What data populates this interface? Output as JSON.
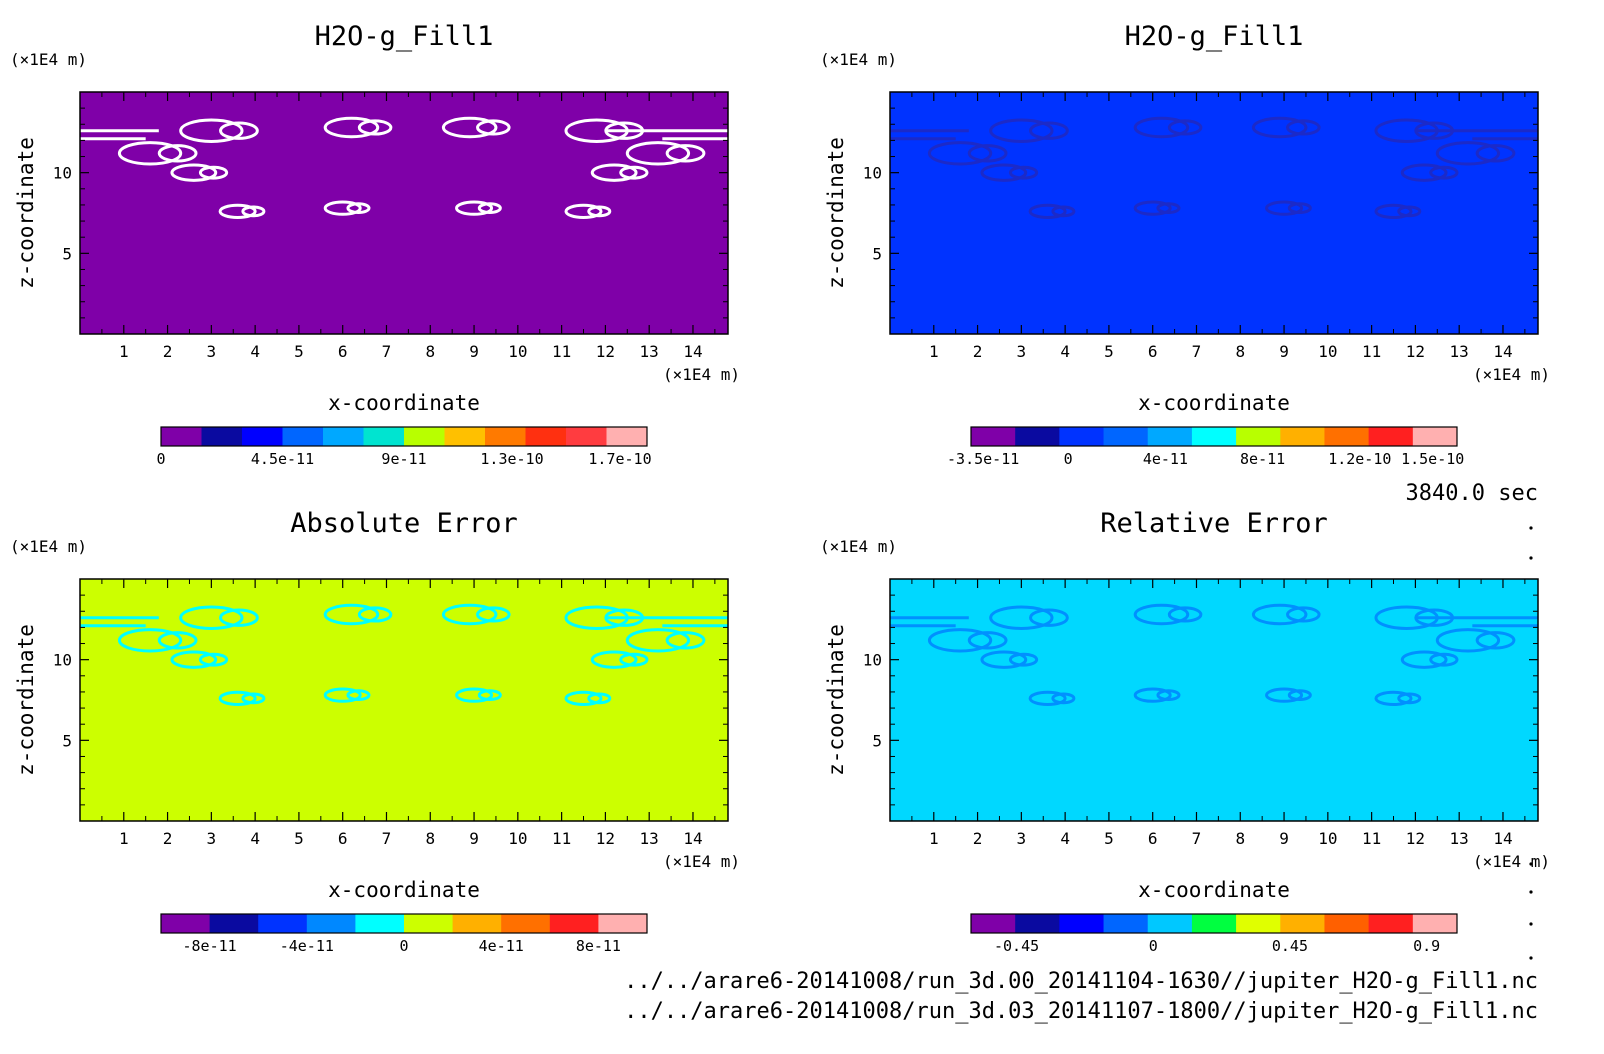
{
  "chart_data": [
    {
      "type": "heatmap",
      "title": "H2O-g_Fill1",
      "xlabel": "x-coordinate",
      "ylabel": "z-coordinate",
      "x_unit": "(×1E4 m)",
      "y_unit": "(×1E4 m)",
      "xlim": [
        0,
        14.8
      ],
      "ylim": [
        0,
        15
      ],
      "x_ticks": [
        "1",
        "2",
        "3",
        "4",
        "5",
        "6",
        "7",
        "8",
        "9",
        "10",
        "11",
        "12",
        "13",
        "14"
      ],
      "y_ticks": [
        "5",
        "10"
      ],
      "background_color": "#7f00a8",
      "feature_color": "#ffffff",
      "colorbar": {
        "colors": [
          "#7f00a8",
          "#0a0aa0",
          "#0000ff",
          "#0066ff",
          "#00a8ff",
          "#00e4d0",
          "#b8ff00",
          "#ffc000",
          "#ff7a00",
          "#ff3010",
          "#ff3c40",
          "#ffb0b0"
        ],
        "labels": [
          "0",
          "4.5e-11",
          "9e-11",
          "1.3e-10",
          "1.7e-10"
        ],
        "label_values": [
          0,
          4.5e-11,
          9e-11,
          1.3e-10,
          1.7e-10
        ],
        "range": [
          0,
          1.8e-10
        ]
      }
    },
    {
      "type": "heatmap",
      "title": "H2O-g_Fill1",
      "xlabel": "x-coordinate",
      "ylabel": "z-coordinate",
      "x_unit": "(×1E4 m)",
      "y_unit": "(×1E4 m)",
      "xlim": [
        0,
        14.8
      ],
      "ylim": [
        0,
        15
      ],
      "x_ticks": [
        "1",
        "2",
        "3",
        "4",
        "5",
        "6",
        "7",
        "8",
        "9",
        "10",
        "11",
        "12",
        "13",
        "14"
      ],
      "y_ticks": [
        "5",
        "10"
      ],
      "background_color": "#0033ff",
      "feature_color": "#1c2ac8",
      "colorbar": {
        "colors": [
          "#7f00a8",
          "#0a0aa0",
          "#0033ff",
          "#0066ff",
          "#00a8ff",
          "#00ffff",
          "#b8ff00",
          "#ffb000",
          "#ff7000",
          "#ff2020",
          "#ffb0b0"
        ],
        "labels": [
          "-3.5e-11",
          "0",
          "4e-11",
          "8e-11",
          "1.2e-10",
          "1.5e-10"
        ],
        "label_values": [
          -3.5e-11,
          0,
          4e-11,
          8e-11,
          1.2e-10,
          1.5e-10
        ],
        "range": [
          -4e-11,
          1.6e-10
        ]
      }
    },
    {
      "type": "heatmap",
      "title": "Absolute Error",
      "xlabel": "x-coordinate",
      "ylabel": "z-coordinate",
      "x_unit": "(×1E4 m)",
      "y_unit": "(×1E4 m)",
      "xlim": [
        0,
        14.8
      ],
      "ylim": [
        0,
        15
      ],
      "x_ticks": [
        "1",
        "2",
        "3",
        "4",
        "5",
        "6",
        "7",
        "8",
        "9",
        "10",
        "11",
        "12",
        "13",
        "14"
      ],
      "y_ticks": [
        "5",
        "10"
      ],
      "background_color": "#ccff00",
      "feature_color": "#00ffff",
      "colorbar": {
        "colors": [
          "#7f00a8",
          "#0a0aa0",
          "#0033ff",
          "#0088ff",
          "#00ffff",
          "#ccff00",
          "#ffb000",
          "#ff7000",
          "#ff2020",
          "#ffb0b0"
        ],
        "labels": [
          "-8e-11",
          "-4e-11",
          "0",
          "4e-11",
          "8e-11"
        ],
        "label_values": [
          -8e-11,
          -4e-11,
          0,
          4e-11,
          8e-11
        ],
        "range": [
          -1e-10,
          1e-10
        ]
      }
    },
    {
      "type": "heatmap",
      "title": "Relative Error",
      "xlabel": "x-coordinate",
      "ylabel": "z-coordinate",
      "x_unit": "(×1E4 m)",
      "y_unit": "(×1E4 m)",
      "xlim": [
        0,
        14.8
      ],
      "ylim": [
        0,
        15
      ],
      "x_ticks": [
        "1",
        "2",
        "3",
        "4",
        "5",
        "6",
        "7",
        "8",
        "9",
        "10",
        "11",
        "12",
        "13",
        "14"
      ],
      "y_ticks": [
        "5",
        "10"
      ],
      "background_color": "#00d8ff",
      "feature_color": "#0090ff",
      "colorbar": {
        "colors": [
          "#7f00a8",
          "#0a0aa0",
          "#0000ff",
          "#0066ff",
          "#00c8ff",
          "#00ff40",
          "#e0ff00",
          "#ffb000",
          "#ff6000",
          "#ff2020",
          "#ffb0b0"
        ],
        "labels": [
          "-0.45",
          "0",
          "0.45",
          "0.9"
        ],
        "label_values": [
          -0.45,
          0,
          0.45,
          0.9
        ],
        "range": [
          -0.6,
          1.0
        ]
      }
    }
  ],
  "time_label": "3840.0 sec",
  "files": [
    "../../arare6-20141008/run_3d.00_20141104-1630//jupiter_H2O-g_Fill1.nc",
    "../../arare6-20141008/run_3d.03_20141107-1800//jupiter_H2O-g_Fill1.nc"
  ]
}
